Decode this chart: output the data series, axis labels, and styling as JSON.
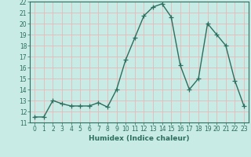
{
  "x": [
    0,
    1,
    2,
    3,
    4,
    5,
    6,
    7,
    8,
    9,
    10,
    11,
    12,
    13,
    14,
    15,
    16,
    17,
    18,
    19,
    20,
    21,
    22,
    23
  ],
  "y": [
    11.5,
    11.5,
    13.0,
    12.7,
    12.5,
    12.5,
    12.5,
    12.8,
    12.4,
    14.0,
    16.7,
    18.7,
    20.7,
    21.5,
    21.8,
    20.6,
    16.2,
    14.0,
    15.0,
    20.0,
    19.0,
    18.0,
    14.8,
    12.5
  ],
  "line_color": "#2d6e5e",
  "marker": "+",
  "marker_size": 4,
  "linewidth": 1.0,
  "bg_color": "#c8ebe6",
  "grid_color": "#e8b8b8",
  "tick_color": "#2d6e5e",
  "xlabel": "Humidex (Indice chaleur)",
  "xlim": [
    -0.5,
    23.5
  ],
  "ylim": [
    11,
    22
  ],
  "yticks": [
    11,
    12,
    13,
    14,
    15,
    16,
    17,
    18,
    19,
    20,
    21,
    22
  ],
  "xticks": [
    0,
    1,
    2,
    3,
    4,
    5,
    6,
    7,
    8,
    9,
    10,
    11,
    12,
    13,
    14,
    15,
    16,
    17,
    18,
    19,
    20,
    21,
    22,
    23
  ],
  "label_fontsize": 6.5,
  "tick_fontsize": 5.5
}
